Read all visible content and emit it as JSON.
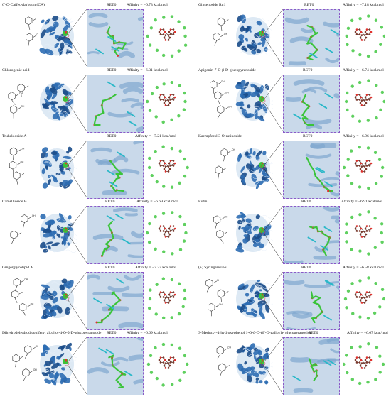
{
  "figure": {
    "panels": [
      {
        "compound": "6′-O-Caffeoylarbutin (CA)",
        "target": "RET0",
        "affinity": "Affinity = −6.73 kcal/mol"
      },
      {
        "compound": "Ginsenoside Rg1",
        "target": "RET0",
        "affinity": "Affinity = −7.18 kcal/mol"
      },
      {
        "compound": "Chlorogenic acid",
        "target": "RET0",
        "affinity": "Affinity = −6.31 kcal/mol"
      },
      {
        "compound": "Apigenin-7-O-β-D-glucopyranoside",
        "target": "RET0",
        "affinity": "Affinity = −6.74 kcal/mol"
      },
      {
        "compound": "Trubakioside A",
        "target": "RET0",
        "affinity": "Affinity = −7.21 kcal/mol"
      },
      {
        "compound": "Kaempferol 3-O-rutinoside",
        "target": "RET0",
        "affinity": "Affinity = −6.96 kcal/mol"
      },
      {
        "compound": "Camellioside B",
        "target": "RET0",
        "affinity": "Affinity = −6.69 kcal/mol"
      },
      {
        "compound": "Rutin",
        "target": "RET0",
        "affinity": "Affinity = −6.91 kcal/mol"
      },
      {
        "compound": "Gingerglycolipid A",
        "target": "RET0",
        "affinity": "Affinity = −7.23 kcal/mol"
      },
      {
        "compound": "(+) Syringaresinol",
        "target": "RET0",
        "affinity": "Affinity = −6.58 kcal/mol"
      },
      {
        "compound": "Dihydrodehydrodiconiferyl alcohol-4-O-β-D-glucopyranoside",
        "target": "RET0",
        "affinity": "Affinity = −6.69 kcal/mol"
      },
      {
        "compound": "3-Methoxy-4-hydroxyphenol 1-O-β-D-(6′-O-galloyl)- glucopyranoside",
        "target": "RET0",
        "affinity": "Affinity = −6.67 kcal/mol"
      }
    ],
    "colors": {
      "protein": "#2e6db3",
      "protein_dark": "#1b4d8a",
      "pocket_bg": "#c9d9ea",
      "ligand_carbon": "#3ac43a",
      "ligand_residue": "#2ab8c8",
      "oxygen": "#e0312d",
      "dash_box": "#8a58c8",
      "map_atom": "#7b3a2e",
      "map_residue": "#5fd05f"
    },
    "icons": [
      "protein-cartoon-icon",
      "ligand-structure-icon",
      "interaction-map-icon"
    ]
  }
}
